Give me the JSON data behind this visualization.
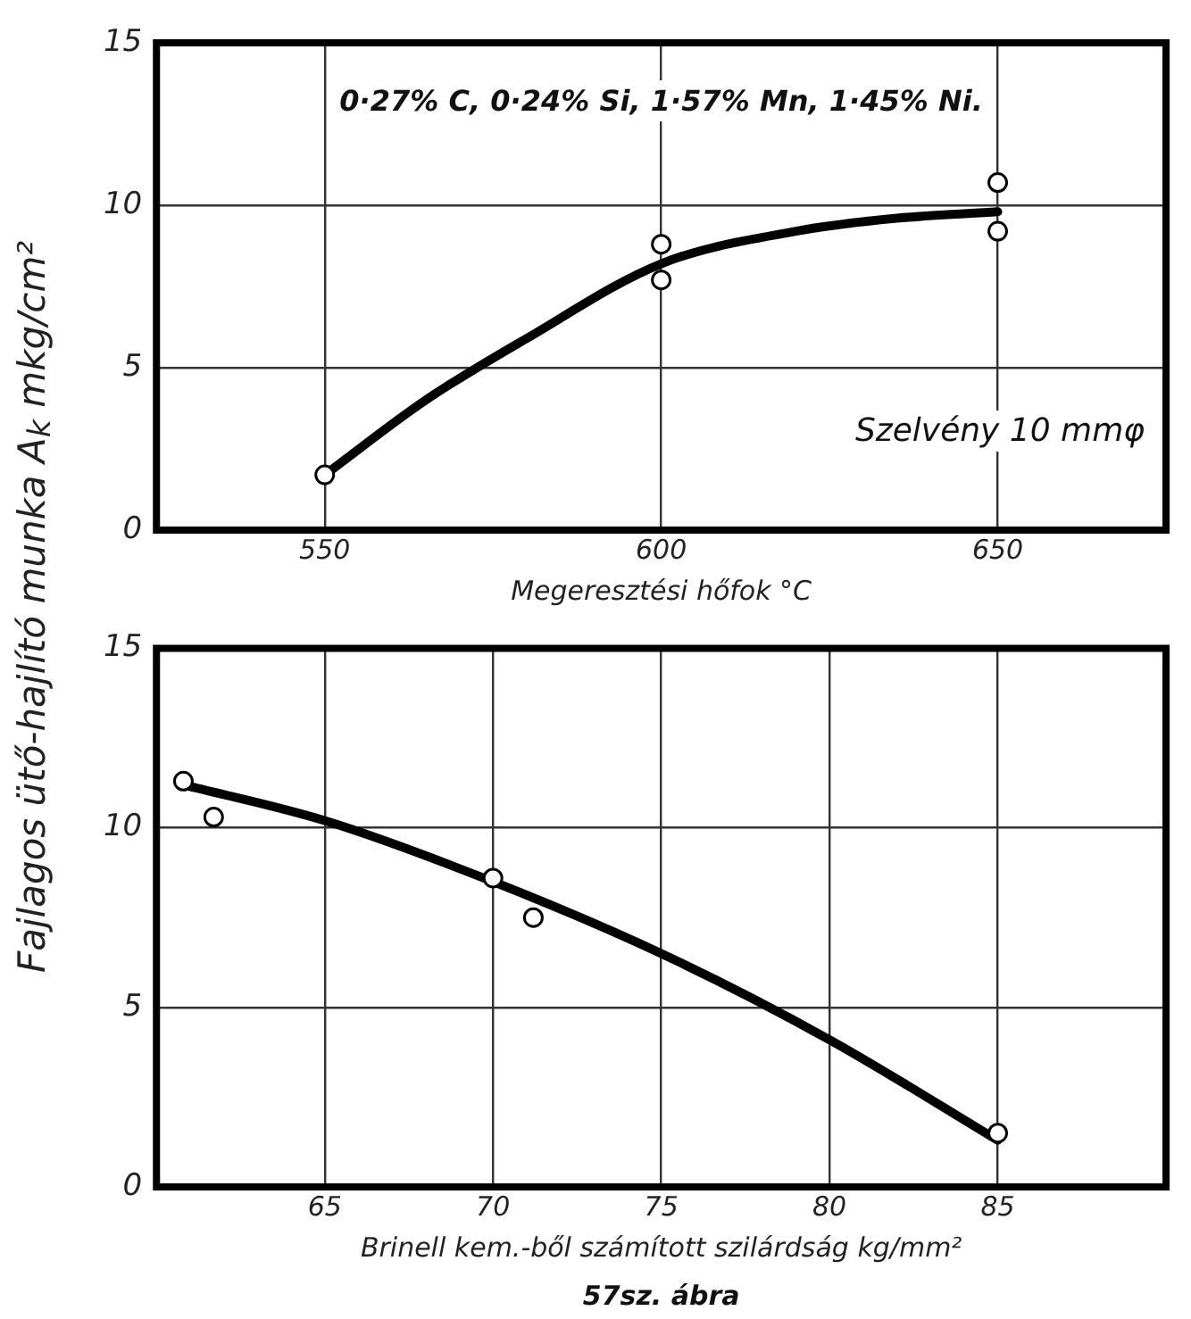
{
  "chart_data": [
    {
      "type": "scatter",
      "ylabel": "Fajlagos ütő-hajlító munka A$_{k}$ mkg/cm²",
      "xlabel": "Megeresztési hőfok °C",
      "annotations": [
        "0·27% C, 0·24% Si, 1·57% Mn, 1·45% Ni.",
        "Szelvény 10 mmφ"
      ],
      "xlim": [
        525,
        675
      ],
      "xticks": [
        550,
        600,
        650
      ],
      "ylim": [
        0,
        15
      ],
      "yticks": [
        0,
        5,
        10,
        15
      ],
      "grid": true,
      "legend": false,
      "series": [
        {
          "color": "#000000",
          "marker": "circle",
          "x": [
            550,
            600,
            600,
            650,
            650
          ],
          "values": [
            1.7,
            8.8,
            7.7,
            10.7,
            9.2
          ]
        },
        {
          "type": "line",
          "color": "#000000",
          "marker": "none",
          "x": [
            550,
            565,
            580,
            600,
            620,
            635,
            650
          ],
          "values": [
            1.7,
            4.0,
            5.9,
            8.2,
            9.2,
            9.6,
            9.8
          ]
        }
      ]
    },
    {
      "type": "scatter",
      "xlabel": "Brinell kem.-ből számított szilárdság kg/mm²",
      "annotations": [
        "57sz. ábra"
      ],
      "xlim": [
        60,
        90
      ],
      "xticks": [
        65,
        70,
        75,
        80,
        85
      ],
      "ylim": [
        0,
        15
      ],
      "yticks": [
        0,
        5,
        10,
        15
      ],
      "grid": true,
      "legend": false,
      "series": [
        {
          "color": "#000000",
          "marker": "circle",
          "x": [
            60.8,
            61.7,
            70,
            71.2,
            85
          ],
          "values": [
            11.3,
            10.3,
            8.6,
            7.5,
            1.5
          ]
        },
        {
          "type": "line",
          "color": "#000000",
          "marker": "none",
          "x": [
            60.8,
            65,
            70,
            75,
            80,
            85
          ],
          "values": [
            11.2,
            10.2,
            8.5,
            6.5,
            4.1,
            1.3
          ]
        }
      ]
    }
  ]
}
